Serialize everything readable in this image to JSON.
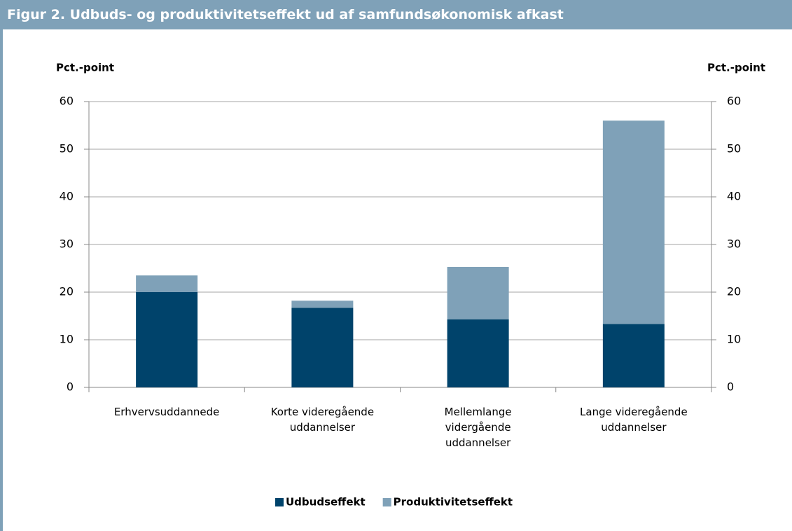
{
  "chart_data": {
    "type": "stacked_bar",
    "title": "Figur 2. Udbuds- og produktivitetseffekt ud af samfundsøkonomisk afkast",
    "y_label": "Pct.-point",
    "y2_label": "Pct.-point",
    "categories": [
      "Erhvervsuddannede",
      "Korte videregående uddannelser",
      "Mellemlange vidergående uddannelser",
      "Lange videregående uddannelser"
    ],
    "series": [
      {
        "name": "Udbudseffekt",
        "color": "#00436b",
        "values": [
          20,
          16.7,
          14.3,
          13.3
        ]
      },
      {
        "name": "Produktivitetseffekt",
        "color": "#7fa1b8",
        "values": [
          3.5,
          1.5,
          11,
          42.7
        ]
      }
    ],
    "ylim": [
      0,
      60
    ],
    "yticks": [
      0,
      10,
      20,
      30,
      40,
      50,
      60
    ],
    "y2lim": [
      0,
      60
    ],
    "y2ticks": [
      0,
      10,
      20,
      30,
      40,
      50,
      60
    ],
    "grid": true,
    "legend": "bottom"
  }
}
